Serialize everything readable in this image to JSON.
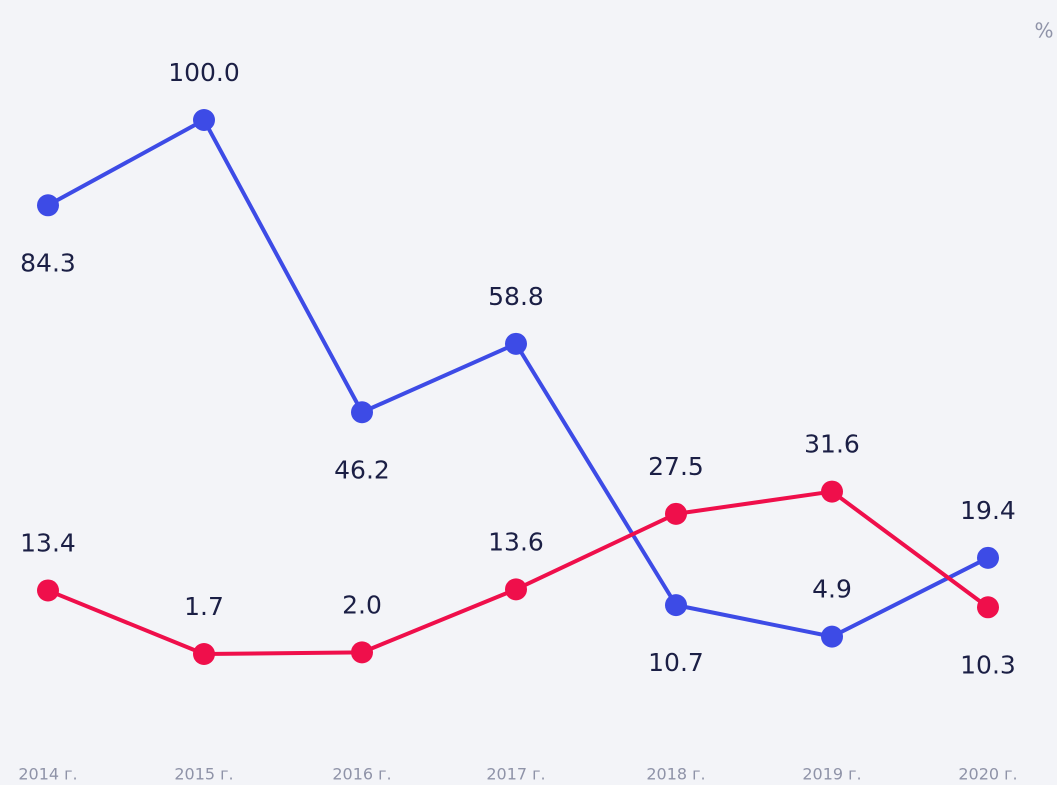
{
  "chart_data": {
    "type": "line",
    "unit": "%",
    "categories": [
      "2014 г.",
      "2015 г.",
      "2016 г.",
      "2017 г.",
      "2018 г.",
      "2019 г.",
      "2020 г."
    ],
    "series": [
      {
        "color": "#3d4be6",
        "values": [
          84.3,
          100.0,
          46.2,
          58.8,
          10.7,
          4.9,
          19.4
        ],
        "value_labels": [
          "84.3",
          "100.0",
          "46.2",
          "58.8",
          "10.7",
          "4.9",
          "19.4"
        ]
      },
      {
        "color": "#ef0f4b",
        "values": [
          13.4,
          1.7,
          2.0,
          13.6,
          27.5,
          31.6,
          10.3
        ],
        "value_labels": [
          "13.4",
          "1.7",
          "2.0",
          "13.6",
          "27.5",
          "31.6",
          "10.3"
        ]
      }
    ]
  }
}
